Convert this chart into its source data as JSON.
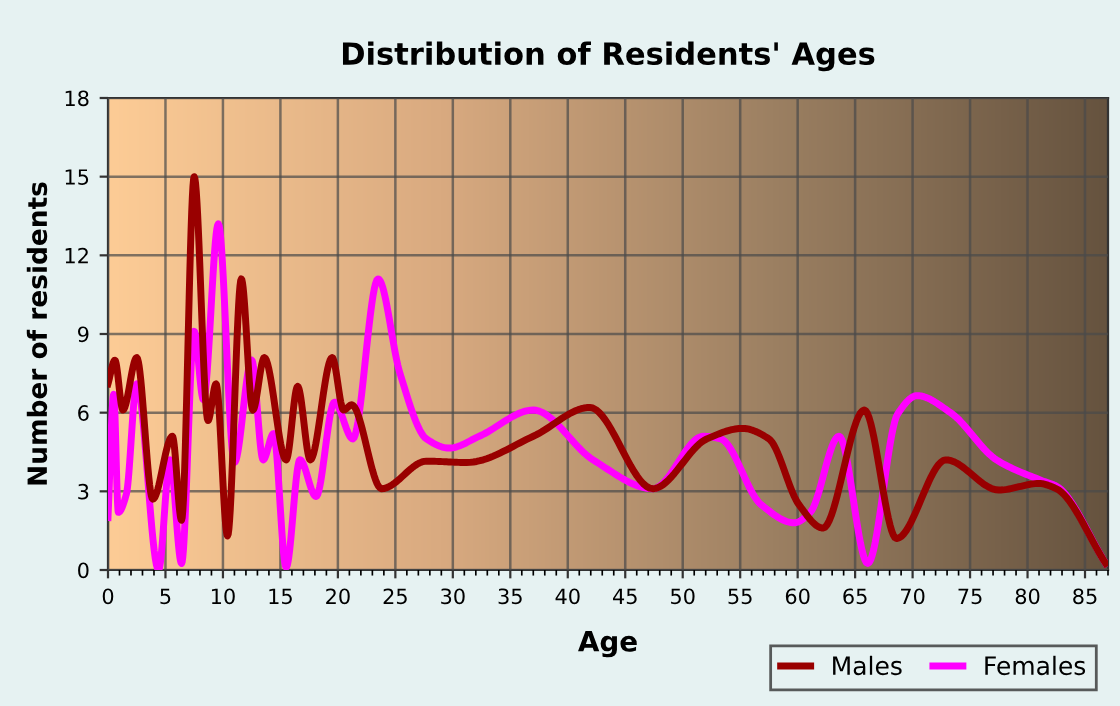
{
  "chart_data": {
    "type": "line",
    "title": "Distribution of Residents' Ages",
    "xlabel": "Age",
    "ylabel": "Number of residents",
    "xlim": [
      0,
      87
    ],
    "xticks": [
      0,
      5,
      10,
      15,
      20,
      25,
      30,
      35,
      40,
      45,
      50,
      55,
      60,
      65,
      70,
      75,
      80,
      85
    ],
    "ylim": [
      0,
      18
    ],
    "yticks": [
      0,
      3,
      6,
      9,
      12,
      15,
      18
    ],
    "grid": true,
    "legend": "bottom right",
    "marker": "none",
    "line_style": "solid",
    "series": [
      {
        "name": "Males",
        "color": "#990000",
        "x": [
          0,
          0.6,
          1.3,
          2.5,
          3.9,
          5.6,
          6.4,
          7.5,
          8.7,
          9.4,
          10.4,
          11.6,
          12.6,
          13.6,
          15.5,
          16.5,
          17.6,
          19.5,
          20.5,
          21.2,
          23.8,
          27.7,
          31.2,
          37,
          41.9,
          47.4,
          52.1,
          55.2,
          57.5,
          60.1,
          62.2,
          65.8,
          68.6,
          72.9,
          77.5,
          81,
          82.5,
          86.8
        ],
        "values": [
          7.1,
          8.0,
          6.1,
          8.1,
          2.7,
          5.1,
          1.9,
          15.0,
          5.7,
          7.1,
          1.3,
          11.1,
          6.1,
          8.1,
          4.2,
          7.0,
          4.2,
          8.1,
          6.1,
          6.3,
          3.1,
          4.15,
          4.1,
          5.1,
          6.2,
          3.1,
          5.0,
          5.4,
          5.0,
          2.5,
          1.6,
          6.1,
          1.2,
          4.2,
          3.05,
          3.3,
          3.1,
          0.25
        ]
      },
      {
        "name": "Females",
        "color": "#ff00ff",
        "x": [
          0,
          0.5,
          0.9,
          1.6,
          2.5,
          4.4,
          5.4,
          6.4,
          7.5,
          8.3,
          9.6,
          11.0,
          12.5,
          13.5,
          14.4,
          15.5,
          16.7,
          18.1,
          19.7,
          21.3,
          23.5,
          25.4,
          27.7,
          29.7,
          32.3,
          37,
          42.2,
          47.4,
          51.8,
          53.3,
          56.8,
          59.7,
          61.1,
          63.6,
          66.1,
          68.7,
          70.4,
          73.3,
          77.3,
          81.3,
          82.5,
          86.8
        ],
        "values": [
          2.0,
          6.7,
          2.2,
          2.9,
          7.1,
          0,
          4.2,
          0.25,
          9.1,
          6.5,
          13.2,
          4.1,
          8.0,
          4.2,
          5.2,
          0.1,
          4.2,
          2.8,
          6.4,
          5.0,
          11.1,
          7.5,
          5.0,
          4.65,
          5.1,
          6.1,
          4.2,
          3.1,
          5.1,
          5.0,
          2.5,
          1.8,
          2.2,
          5.1,
          0.25,
          5.95,
          6.65,
          6.0,
          4.2,
          3.4,
          3.2,
          0.25
        ]
      }
    ]
  }
}
